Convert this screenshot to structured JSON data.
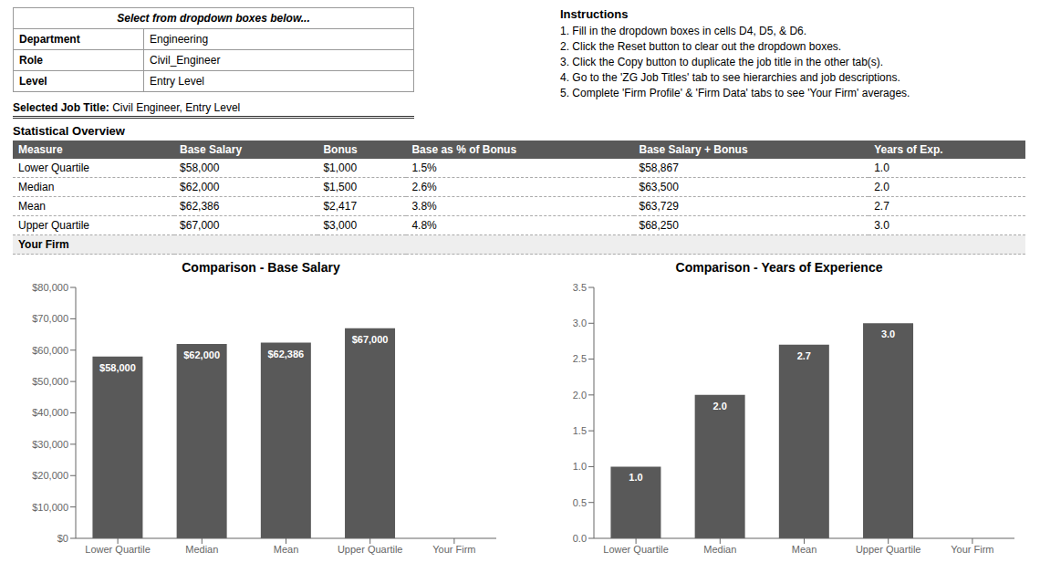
{
  "chart_data": [
    {
      "type": "form",
      "title": "Select from dropdown boxes below...",
      "annotations": [
        [
          "Department",
          "Engineering"
        ],
        [
          "Role",
          "Civil_Engineer"
        ],
        [
          "Level",
          "Entry Level"
        ],
        [
          "Selected Job Title:",
          "Civil Engineer, Entry Level"
        ]
      ]
    },
    {
      "type": "text",
      "title": "Instructions",
      "annotations": [
        "1. Fill in the dropdown boxes in cells D4, D5, & D6.",
        "2. Click the Reset button to clear out the dropdown boxes.",
        "3. Click the Copy button to duplicate the job title in the other tab(s).",
        "4. Go to the 'ZG Job Titles' tab to see hierarchies and job descriptions.",
        "5. Complete 'Firm Profile' & 'Firm Data' tabs to see 'Your Firm' averages."
      ]
    },
    {
      "type": "table",
      "title": "Statistical Overview",
      "categories": [
        "Measure",
        "Base Salary",
        "Bonus",
        "Base as % of Bonus",
        "Base Salary + Bonus",
        "Years of Exp."
      ],
      "annotations": [
        [
          "Lower Quartile",
          "$58,000",
          "$1,000",
          "1.5%",
          "$58,867",
          "1.0"
        ],
        [
          "Median",
          "$62,000",
          "$1,500",
          "2.6%",
          "$63,500",
          "2.0"
        ],
        [
          "Mean",
          "$62,386",
          "$2,417",
          "3.8%",
          "$63,729",
          "2.7"
        ],
        [
          "Upper Quartile",
          "$67,000",
          "$3,000",
          "4.8%",
          "$68,250",
          "3.0"
        ],
        [
          "Your Firm"
        ]
      ]
    },
    {
      "type": "bar",
      "title": "Comparison - Base Salary",
      "categories": [
        "Lower Quartile",
        "Median",
        "Mean",
        "Upper Quartile",
        "Your Firm"
      ],
      "values": [
        58000,
        62000,
        62386,
        67000,
        0
      ],
      "value_labels": [
        "$58,000",
        "$62,000",
        "$62,386",
        "$67,000",
        null
      ],
      "data_labels": true,
      "colors": [
        "#595959",
        "#595959",
        "#595959",
        "#595959",
        "#DDDDDD"
      ],
      "ylim": [
        0,
        80000
      ],
      "yticks": [
        {
          "value": 0,
          "label": "$0"
        },
        {
          "value": 10000,
          "label": "$10,000"
        },
        {
          "value": 20000,
          "label": "$20,000"
        },
        {
          "value": 30000,
          "label": "$30,000"
        },
        {
          "value": 40000,
          "label": "$40,000"
        },
        {
          "value": 50000,
          "label": "$50,000"
        },
        {
          "value": 60000,
          "label": "$60,000"
        },
        {
          "value": 70000,
          "label": "$70,000"
        },
        {
          "value": 80000,
          "label": "$80,000"
        }
      ],
      "grid": false
    },
    {
      "type": "bar",
      "title": "Comparison - Years of Experience",
      "categories": [
        "Lower Quartile",
        "Median",
        "Mean",
        "Upper Quartile",
        "Your Firm"
      ],
      "values": [
        1.0,
        2.0,
        2.7,
        3.0,
        0
      ],
      "value_labels": [
        "1.0",
        "2.0",
        "2.7",
        "3.0",
        null
      ],
      "data_labels": true,
      "colors": [
        "#595959",
        "#595959",
        "#595959",
        "#595959",
        "#DDDDDD"
      ],
      "ylim": [
        0,
        3.5
      ],
      "yticks": [
        {
          "value": 0,
          "label": "0.0"
        },
        0.5,
        {
          "value": 1,
          "label": "1.0"
        },
        1.5,
        {
          "value": 2,
          "label": "2.0"
        },
        2.5,
        {
          "value": 3,
          "label": "3.0"
        },
        3.5
      ],
      "grid": false
    }
  ]
}
